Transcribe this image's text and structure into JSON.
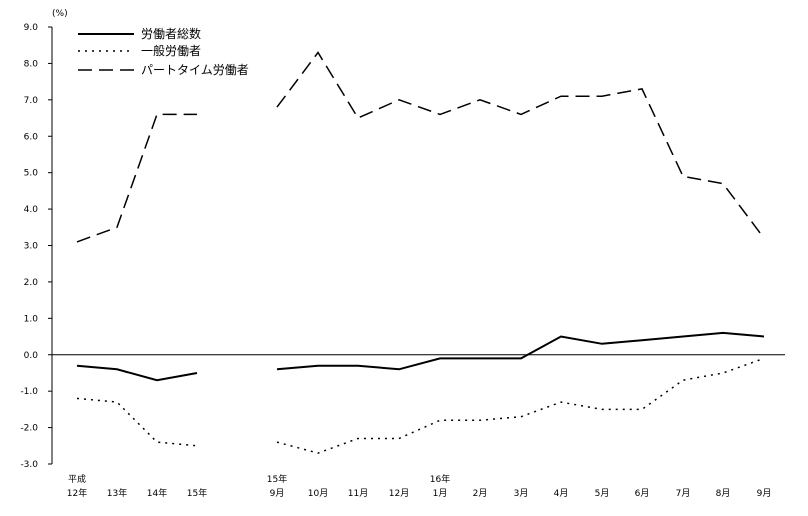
{
  "chart_data": {
    "type": "line",
    "unit_label": "(%)",
    "ylim": [
      -3.0,
      9.0
    ],
    "y_ticks": [
      "9.0",
      "8.0",
      "7.0",
      "6.0",
      "5.0",
      "4.0",
      "3.0",
      "2.0",
      "1.0",
      "0.0",
      "-1.0",
      "-2.0",
      "-3.0"
    ],
    "y_tick_values": [
      9,
      8,
      7,
      6,
      5,
      4,
      3,
      2,
      1,
      0,
      -1,
      -2,
      -3
    ],
    "grid": false,
    "legend_position": "top-left",
    "era_labels": [
      {
        "text": "平成",
        "at": 0
      },
      {
        "text": "15年",
        "at": 4
      },
      {
        "text": "16年",
        "at": 8
      }
    ],
    "categories": [
      "12年",
      "13年",
      "14年",
      "15年",
      "9月",
      "10月",
      "11月",
      "12月",
      "1月",
      "2月",
      "3月",
      "4月",
      "5月",
      "6月",
      "7月",
      "8月",
      "9月"
    ],
    "break_after_index": 3,
    "series": [
      {
        "name": "労働者総数",
        "dash": "solid",
        "values": [
          -0.3,
          -0.4,
          -0.7,
          -0.5,
          -0.4,
          -0.3,
          -0.3,
          -0.4,
          -0.1,
          -0.1,
          -0.1,
          0.5,
          0.3,
          0.4,
          0.5,
          0.6,
          0.5
        ]
      },
      {
        "name": "一般労働者",
        "dash": "dotted",
        "values": [
          -1.2,
          -1.3,
          -2.4,
          -2.5,
          -2.4,
          -2.7,
          -2.3,
          -2.3,
          -1.8,
          -1.8,
          -1.7,
          -1.3,
          -1.5,
          -1.5,
          -0.7,
          -0.5,
          -0.1
        ]
      },
      {
        "name": "パートタイム労働者",
        "dash": "dashed",
        "values": [
          3.1,
          3.5,
          6.6,
          6.6,
          6.8,
          8.3,
          6.5,
          7.0,
          6.6,
          7.0,
          6.6,
          7.1,
          7.1,
          7.3,
          4.9,
          4.7,
          3.2
        ]
      }
    ]
  }
}
